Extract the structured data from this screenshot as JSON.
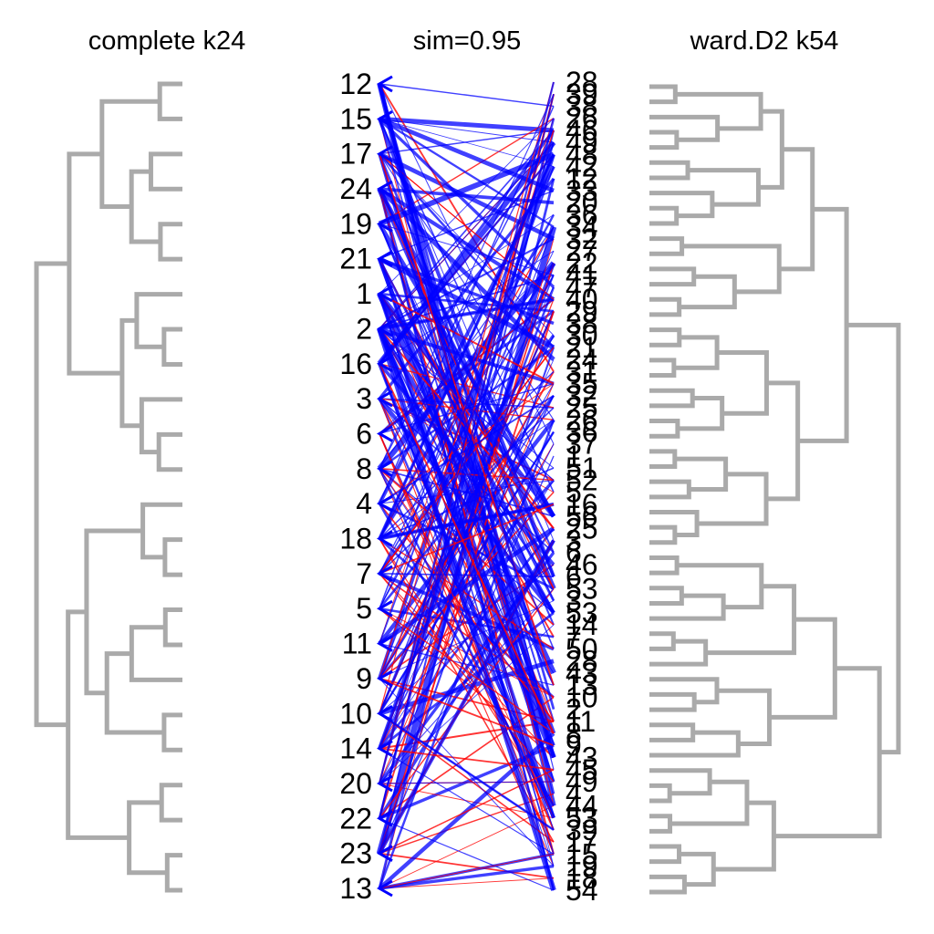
{
  "titles": {
    "left": "complete k24",
    "center": "sim=0.95",
    "right": "ward.D2 k54"
  },
  "colors": {
    "dendrogram": "#aaaaaa",
    "link_primary": "#0000ff",
    "link_secondary": "#ff0000",
    "label": "#000000"
  },
  "left_labels": [
    "12",
    "15",
    "17",
    "24",
    "19",
    "21",
    "1",
    "2",
    "16",
    "3",
    "6",
    "8",
    "4",
    "18",
    "7",
    "5",
    "11",
    "9",
    "10",
    "14",
    "20",
    "22",
    "23",
    "13"
  ],
  "right_labels": [
    "28",
    "39",
    "38",
    "26",
    "46",
    "49",
    "48",
    "42",
    "12",
    "33",
    "20",
    "36",
    "34",
    "32",
    "27",
    "22",
    "41",
    "47",
    "40",
    "29",
    "38",
    "30",
    "21",
    "24",
    "31",
    "35",
    "32",
    "25",
    "26",
    "36",
    "37",
    "1",
    "51",
    "52",
    "5",
    "16",
    "56",
    "25",
    "3",
    "6",
    "46",
    "6",
    "53",
    "3",
    "53",
    "14",
    "7",
    "50",
    "28",
    "43",
    "13",
    "10",
    "2",
    "11",
    "8",
    "9",
    "43",
    "45",
    "49",
    "4",
    "44",
    "53",
    "39",
    "17",
    "15",
    "19",
    "18",
    "54"
  ]
}
